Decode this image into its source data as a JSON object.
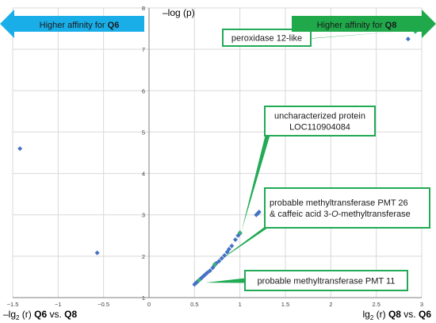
{
  "chart_data": {
    "type": "scatter",
    "xlim": [
      -1.5,
      3
    ],
    "ylim": [
      1,
      8
    ],
    "x_ticks": [
      "-1.5",
      "-1",
      "-0.5",
      "0",
      "0.5",
      "1",
      "1.5",
      "2",
      "2.5",
      "3"
    ],
    "y_ticks": [
      "1",
      "2",
      "3",
      "4",
      "5",
      "6",
      "7",
      "8"
    ],
    "x_tick_values": [
      -1.5,
      -1,
      -0.5,
      0,
      0.5,
      1,
      1.5,
      2,
      2.5,
      3
    ],
    "y_tick_values": [
      1,
      2,
      3,
      4,
      5,
      6,
      7,
      8
    ],
    "grid": true,
    "ylabel": "–log (p)",
    "xlabel_left": {
      "prefix": "–lg",
      "sub": "2",
      "mid": " (r) ",
      "b1": "Q6",
      "vs": " vs. ",
      "b2": "Q8"
    },
    "xlabel_right": {
      "prefix": "lg",
      "sub": "2",
      "mid": " (r) ",
      "b1": "Q8",
      "vs": " vs. ",
      "b2": "Q6"
    },
    "arrow_left": {
      "text": "Higher affinity for ",
      "bold": "Q6",
      "color": "#1aaee8"
    },
    "arrow_right": {
      "text": "Higher affinity for ",
      "bold": "Q8",
      "color": "#1fa94a"
    },
    "point_color": "#4472c4",
    "highlight_color": "#3cb371",
    "label_border_color": "#22aa55",
    "points": [
      {
        "x": -1.42,
        "y": 4.6
      },
      {
        "x": -0.57,
        "y": 2.08
      },
      {
        "x": 0.5,
        "y": 1.32
      },
      {
        "x": 0.51,
        "y": 1.34
      },
      {
        "x": 0.52,
        "y": 1.36
      },
      {
        "x": 0.53,
        "y": 1.38
      },
      {
        "x": 0.54,
        "y": 1.4
      },
      {
        "x": 0.55,
        "y": 1.42
      },
      {
        "x": 0.56,
        "y": 1.44
      },
      {
        "x": 0.57,
        "y": 1.46
      },
      {
        "x": 0.58,
        "y": 1.48
      },
      {
        "x": 0.6,
        "y": 1.52
      },
      {
        "x": 0.62,
        "y": 1.56
      },
      {
        "x": 0.64,
        "y": 1.6
      },
      {
        "x": 0.67,
        "y": 1.65
      },
      {
        "x": 0.7,
        "y": 1.72
      },
      {
        "x": 0.72,
        "y": 1.78
      },
      {
        "x": 0.74,
        "y": 1.83
      },
      {
        "x": 0.77,
        "y": 1.88
      },
      {
        "x": 0.8,
        "y": 1.95
      },
      {
        "x": 0.83,
        "y": 2.02
      },
      {
        "x": 0.86,
        "y": 2.1
      },
      {
        "x": 0.88,
        "y": 2.17
      },
      {
        "x": 0.91,
        "y": 2.25
      },
      {
        "x": 0.95,
        "y": 2.4
      },
      {
        "x": 0.98,
        "y": 2.5
      },
      {
        "x": 1.0,
        "y": 2.55
      },
      {
        "x": 1.18,
        "y": 3.0
      },
      {
        "x": 1.2,
        "y": 3.04
      },
      {
        "x": 1.21,
        "y": 3.07
      },
      {
        "x": 2.85,
        "y": 7.25
      }
    ],
    "highlight_points": [
      {
        "x": 0.55,
        "y": 1.42
      },
      {
        "x": 0.72,
        "y": 1.8
      },
      {
        "x": 1.0,
        "y": 2.57
      },
      {
        "x": 2.93,
        "y": 7.43
      }
    ],
    "annotations": [
      {
        "lines": [
          "peroxidase 12-like"
        ],
        "point": {
          "x": 2.93,
          "y": 7.43
        }
      },
      {
        "lines": [
          "uncharacterized protein",
          "LOC110904084"
        ],
        "point": {
          "x": 1.0,
          "y": 2.57
        }
      },
      {
        "lines": [
          "probable methyltransferase PMT 26",
          "& caffeic acid 3-O-methyltransferase"
        ],
        "point": {
          "x": 0.72,
          "y": 1.8
        }
      },
      {
        "lines": [
          "probable methyltransferase PMT 11"
        ],
        "point": {
          "x": 0.55,
          "y": 1.42
        }
      }
    ]
  }
}
